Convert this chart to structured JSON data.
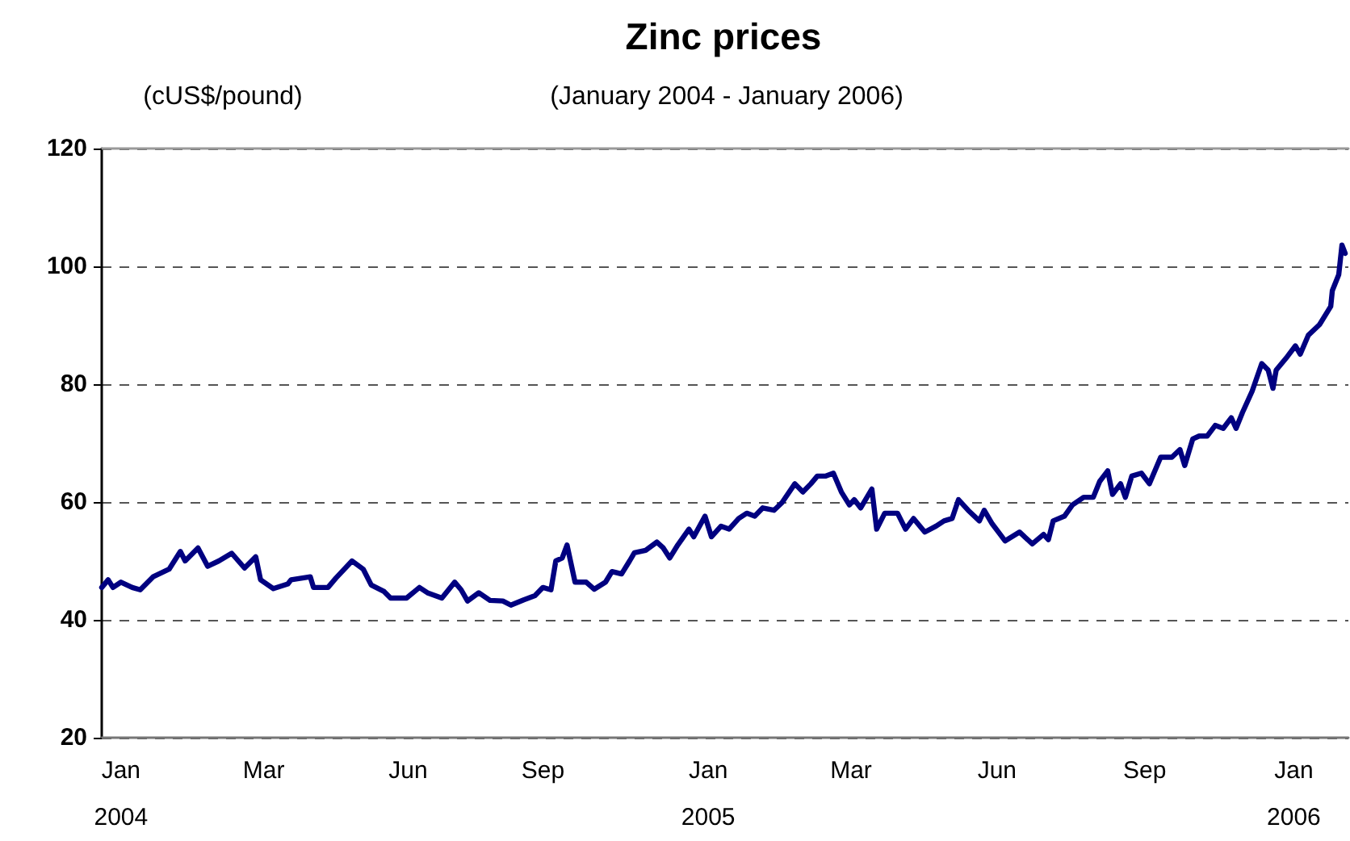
{
  "chart_data": {
    "type": "line",
    "title": "Zinc prices",
    "subtitle": "(January 2004 - January 2006)",
    "ylabel": "(cUS$/pound)",
    "x": [
      "2003-12-20",
      "2003-12-24",
      "2003-12-27",
      "2004-01-01",
      "2004-01-08",
      "2004-01-13",
      "2004-01-21",
      "2004-01-31",
      "2004-02-07",
      "2004-02-10",
      "2004-02-18",
      "2004-02-24",
      "2004-03-02",
      "2004-03-10",
      "2004-03-18",
      "2004-03-25",
      "2004-03-28",
      "2004-04-05",
      "2004-04-14",
      "2004-04-16",
      "2004-04-28",
      "2004-04-30",
      "2004-05-09",
      "2004-05-14",
      "2004-05-24",
      "2004-05-31",
      "2004-06-05",
      "2004-06-13",
      "2004-06-17",
      "2004-06-27",
      "2004-07-05",
      "2004-07-10",
      "2004-07-19",
      "2004-07-27",
      "2004-07-31",
      "2004-08-04",
      "2004-08-11",
      "2004-08-18",
      "2004-08-26",
      "2004-08-31",
      "2004-09-08",
      "2004-09-15",
      "2004-09-20",
      "2004-09-25",
      "2004-09-28",
      "2004-10-02",
      "2004-10-05",
      "2004-10-10",
      "2004-10-17",
      "2004-10-22",
      "2004-10-29",
      "2004-11-02",
      "2004-11-08",
      "2004-11-13",
      "2004-11-16",
      "2004-11-23",
      "2004-11-30",
      "2004-12-04",
      "2004-12-08",
      "2004-12-13",
      "2004-12-20",
      "2004-12-23",
      "2004-12-30",
      "2005-01-03",
      "2005-01-09",
      "2005-01-14",
      "2005-01-20",
      "2005-01-25",
      "2005-01-30",
      "2005-02-04",
      "2005-02-11",
      "2005-02-16",
      "2005-02-24",
      "2005-03-01",
      "2005-03-06",
      "2005-03-10",
      "2005-03-15",
      "2005-03-20",
      "2005-03-25",
      "2005-03-30",
      "2005-04-02",
      "2005-04-06",
      "2005-04-13",
      "2005-04-16",
      "2005-04-21",
      "2005-04-29",
      "2005-05-04",
      "2005-05-09",
      "2005-05-16",
      "2005-05-23",
      "2005-05-28",
      "2005-06-02",
      "2005-06-06",
      "2005-06-12",
      "2005-06-19",
      "2005-06-22",
      "2005-06-27",
      "2005-07-02",
      "2005-07-05",
      "2005-07-14",
      "2005-07-22",
      "2005-07-29",
      "2005-08-01",
      "2005-08-04",
      "2005-08-11",
      "2005-08-16",
      "2005-08-23",
      "2005-08-29",
      "2005-09-02",
      "2005-09-07",
      "2005-09-10",
      "2005-09-15",
      "2005-09-18",
      "2005-09-22",
      "2005-09-28",
      "2005-10-03",
      "2005-10-10",
      "2005-10-17",
      "2005-10-22",
      "2005-10-25",
      "2005-10-30",
      "2005-11-03",
      "2005-11-08",
      "2005-11-13",
      "2005-11-18",
      "2005-11-23",
      "2005-11-26",
      "2005-11-30",
      "2005-12-06",
      "2005-12-12",
      "2005-12-16",
      "2005-12-19",
      "2005-12-21",
      "2005-12-28",
      "2006-01-02",
      "2006-01-05",
      "2006-01-10",
      "2006-01-17",
      "2006-01-24",
      "2006-01-25",
      "2006-01-29",
      "2006-01-31",
      "2006-02-02"
    ],
    "series": [
      {
        "color": "#000080",
        "values": [
          45.5,
          46.8,
          45.5,
          46.4,
          45.5,
          45.1,
          47.3,
          48.6,
          51.6,
          50.0,
          52.2,
          49.1,
          50.0,
          51.3,
          48.8,
          50.7,
          46.8,
          45.3,
          46.1,
          46.8,
          47.3,
          45.5,
          45.5,
          47.1,
          50.0,
          48.6,
          45.9,
          44.8,
          43.7,
          43.7,
          45.5,
          44.6,
          43.7,
          46.4,
          45.1,
          43.2,
          44.6,
          43.3,
          43.2,
          42.5,
          43.4,
          44.1,
          45.5,
          45.1,
          50.0,
          50.5,
          52.7,
          46.4,
          46.4,
          45.2,
          46.4,
          48.2,
          47.8,
          50.0,
          51.4,
          51.8,
          53.2,
          52.2,
          50.5,
          52.7,
          55.4,
          54.1,
          57.6,
          54.1,
          55.9,
          55.4,
          57.2,
          58.1,
          57.6,
          59.0,
          58.6,
          59.9,
          63.1,
          61.7,
          63.1,
          64.4,
          64.4,
          64.9,
          61.7,
          59.5,
          60.4,
          59.0,
          62.2,
          55.4,
          58.1,
          58.1,
          55.4,
          57.2,
          54.9,
          55.9,
          56.8,
          57.2,
          60.4,
          58.6,
          56.8,
          58.6,
          56.3,
          54.5,
          53.4,
          54.9,
          52.9,
          54.5,
          53.6,
          56.8,
          57.6,
          59.5,
          60.8,
          60.8,
          63.5,
          65.3,
          61.3,
          63.1,
          60.8,
          64.4,
          64.9,
          63.1,
          67.6,
          67.6,
          68.9,
          66.2,
          70.7,
          71.2,
          71.2,
          73.0,
          72.5,
          74.3,
          72.5,
          75.2,
          78.8,
          83.5,
          82.4,
          79.3,
          82.4,
          84.7,
          86.5,
          85.1,
          88.3,
          90.1,
          93.2,
          95.9,
          98.6,
          103.6,
          102.2
        ]
      }
    ],
    "xlim": [
      "2003-12-20",
      "2006-02-04"
    ],
    "xticks": [
      {
        "value": "2004-01-01",
        "label": "Jan\n2004"
      },
      {
        "value": "2004-03-30",
        "label": "Mar"
      },
      {
        "value": "2004-06-28",
        "label": "Jun"
      },
      {
        "value": "2004-09-20",
        "label": "Sep"
      },
      {
        "value": "2005-01-01",
        "label": "Jan\n2005"
      },
      {
        "value": "2005-03-31",
        "label": "Mar"
      },
      {
        "value": "2005-06-30",
        "label": "Jun"
      },
      {
        "value": "2005-09-30",
        "label": "Sep"
      },
      {
        "value": "2006-01-01",
        "label": "Jan\n2006"
      }
    ],
    "ylim": [
      20,
      120
    ],
    "yticks": [
      20,
      40,
      60,
      80,
      100,
      120
    ],
    "grid": "y",
    "marker": "none",
    "line_style": "solid"
  }
}
